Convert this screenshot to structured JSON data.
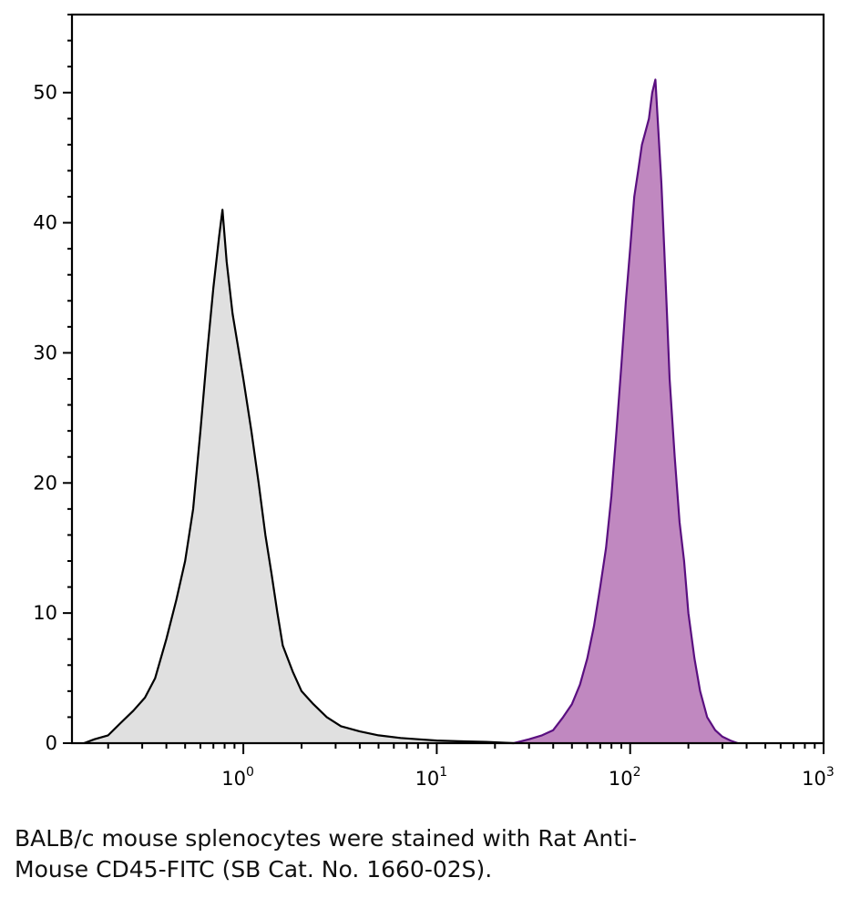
{
  "chart_data": {
    "type": "area",
    "x_scale": "log",
    "xlim": [
      0.13,
      1000
    ],
    "ylim": [
      0,
      56
    ],
    "x_ticks": [
      {
        "base": "10",
        "exp": "0"
      },
      {
        "base": "10",
        "exp": "1"
      },
      {
        "base": "10",
        "exp": "2"
      },
      {
        "base": "10",
        "exp": "3"
      }
    ],
    "y_ticks": [
      "0",
      "10",
      "20",
      "30",
      "40",
      "50"
    ],
    "y_tick_values": [
      0,
      10,
      20,
      30,
      40,
      50
    ],
    "grid": false,
    "series": [
      {
        "fill": "#e0e0e0",
        "stroke": "#000000",
        "points": [
          [
            0.15,
            0
          ],
          [
            0.17,
            0.3
          ],
          [
            0.2,
            0.6
          ],
          [
            0.23,
            1.5
          ],
          [
            0.27,
            2.5
          ],
          [
            0.31,
            3.5
          ],
          [
            0.35,
            5
          ],
          [
            0.4,
            8
          ],
          [
            0.45,
            11
          ],
          [
            0.5,
            14
          ],
          [
            0.55,
            18
          ],
          [
            0.6,
            24
          ],
          [
            0.65,
            30
          ],
          [
            0.7,
            35
          ],
          [
            0.75,
            39
          ],
          [
            0.78,
            41
          ],
          [
            0.82,
            37
          ],
          [
            0.88,
            33
          ],
          [
            0.95,
            30
          ],
          [
            1.0,
            28
          ],
          [
            1.1,
            24
          ],
          [
            1.2,
            20
          ],
          [
            1.3,
            16
          ],
          [
            1.4,
            13
          ],
          [
            1.5,
            10
          ],
          [
            1.6,
            7.5
          ],
          [
            1.8,
            5.5
          ],
          [
            2.0,
            4
          ],
          [
            2.3,
            3
          ],
          [
            2.7,
            2
          ],
          [
            3.2,
            1.3
          ],
          [
            4,
            0.9
          ],
          [
            5,
            0.6
          ],
          [
            6.5,
            0.4
          ],
          [
            8,
            0.3
          ],
          [
            10,
            0.2
          ],
          [
            13,
            0.15
          ],
          [
            18,
            0.1
          ],
          [
            25,
            0
          ]
        ]
      },
      {
        "fill": "#c088c0",
        "stroke": "#5a0f80",
        "points": [
          [
            25,
            0
          ],
          [
            30,
            0.3
          ],
          [
            35,
            0.6
          ],
          [
            40,
            1
          ],
          [
            45,
            2
          ],
          [
            50,
            3
          ],
          [
            55,
            4.5
          ],
          [
            60,
            6.5
          ],
          [
            65,
            9
          ],
          [
            70,
            12
          ],
          [
            75,
            15
          ],
          [
            80,
            19
          ],
          [
            85,
            24
          ],
          [
            90,
            29
          ],
          [
            95,
            34
          ],
          [
            100,
            38
          ],
          [
            105,
            42
          ],
          [
            110,
            44
          ],
          [
            115,
            46
          ],
          [
            120,
            47
          ],
          [
            125,
            48
          ],
          [
            130,
            50
          ],
          [
            135,
            51
          ],
          [
            140,
            47
          ],
          [
            145,
            43
          ],
          [
            150,
            38
          ],
          [
            155,
            33
          ],
          [
            160,
            28
          ],
          [
            170,
            22
          ],
          [
            180,
            17
          ],
          [
            190,
            14
          ],
          [
            200,
            10
          ],
          [
            215,
            6.5
          ],
          [
            230,
            4
          ],
          [
            250,
            2
          ],
          [
            275,
            1
          ],
          [
            300,
            0.5
          ],
          [
            330,
            0.2
          ],
          [
            360,
            0
          ]
        ]
      }
    ]
  },
  "caption": {
    "line1": "BALB/c mouse splenocytes were stained with Rat Anti-",
    "line2": "Mouse CD45-FITC (SB Cat. No. 1660-02S)."
  }
}
